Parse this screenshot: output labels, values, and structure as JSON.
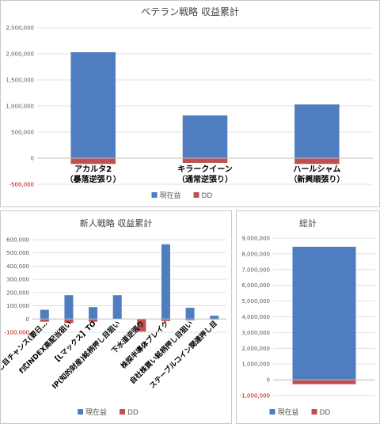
{
  "colors": {
    "profit": "#4e7ebf",
    "dd": "#c0504d",
    "grid": "#d9d9d9",
    "axis": "#7f7f7f",
    "text": "#404040"
  },
  "chart_data": [
    {
      "type": "bar",
      "title": "ベテラン戦略 収益累計",
      "categories": [
        [
          "アカルタ2",
          "（暴落逆張り）"
        ],
        [
          "キラークイーン",
          "（通常逆張り）"
        ],
        [
          "ハールシャム",
          "（新興順張り）"
        ]
      ],
      "series": [
        {
          "name": "現在益",
          "values": [
            2030000,
            820000,
            1030000
          ]
        },
        {
          "name": "DD",
          "values": [
            -110000,
            -90000,
            -110000
          ]
        }
      ],
      "ylim": [
        -500000,
        2500000
      ],
      "yticks": [
        -500000,
        0,
        500000,
        1000000,
        1500000,
        2000000,
        2500000
      ],
      "ytick_labels": [
        "-500,000",
        "0",
        "500,000",
        "1,000,000",
        "1,500,000",
        "2,000,000",
        "2,500,000"
      ],
      "legend": "bottom",
      "grid": true
    },
    {
      "type": "bar",
      "title": "新人戦略 収益累計",
      "categories": [
        "高配当押し目チャンス(要日…",
        "f式INDEX高配当狙い",
        "【Lマックス】TO",
        "IP(知的財産)銘柄押し目狙い",
        "下水道逆張り",
        "株探半導体ブレイク",
        "自社株買い銘柄押し目狙い",
        "ステーブルコイン関連押し目"
      ],
      "series": [
        {
          "name": "現在益",
          "values": [
            70000,
            180000,
            90000,
            180000,
            0,
            565000,
            85000,
            25000
          ]
        },
        {
          "name": "DD",
          "values": [
            -20000,
            -30000,
            -20000,
            0,
            -95000,
            -15000,
            -10000,
            -5000
          ]
        }
      ],
      "ylim": [
        -100000,
        600000
      ],
      "yticks": [
        -100000,
        0,
        100000,
        200000,
        300000,
        400000,
        500000,
        600000
      ],
      "ytick_labels": [
        "-100,000",
        "0",
        "100,000",
        "200,000",
        "300,000",
        "400,000",
        "500,000",
        "600,000"
      ],
      "legend": "bottom",
      "grid": true
    },
    {
      "type": "bar",
      "title": "総計",
      "categories": [
        ""
      ],
      "series": [
        {
          "name": "現在益",
          "values": [
            8450000
          ]
        },
        {
          "name": "DD",
          "values": [
            -280000
          ]
        }
      ],
      "ylim": [
        -1000000,
        9000000
      ],
      "yticks": [
        -1000000,
        0,
        1000000,
        2000000,
        3000000,
        4000000,
        5000000,
        6000000,
        7000000,
        8000000,
        9000000
      ],
      "ytick_labels": [
        "-1,000,000",
        "0",
        "1,000,000",
        "2,000,000",
        "3,000,000",
        "4,000,000",
        "5,000,000",
        "6,000,000",
        "7,000,000",
        "8,000,000",
        "9,000,000"
      ],
      "legend": "bottom",
      "grid": true
    }
  ]
}
